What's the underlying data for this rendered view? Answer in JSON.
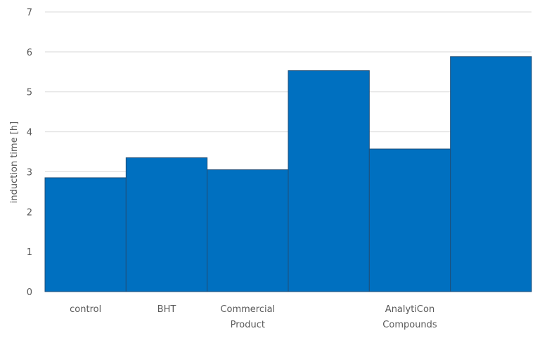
{
  "chart_data": {
    "type": "bar",
    "ylabel": "induction time [h]",
    "xlabel": "",
    "ylim": [
      0,
      7
    ],
    "yticks": [
      "0",
      "1",
      "2",
      "3",
      "4",
      "5",
      "6",
      "7"
    ],
    "grid": true,
    "bar_color": "#0070C0",
    "bar_edge_color": "#1F4E79",
    "grid_color": "#D9D9D9",
    "bar_values": [
      2.85,
      3.35,
      3.05,
      5.53,
      3.57,
      5.88
    ],
    "category_labels": [
      {
        "lines": [
          "control"
        ],
        "bar_span": [
          0,
          0
        ]
      },
      {
        "lines": [
          "BHT"
        ],
        "bar_span": [
          1,
          1
        ]
      },
      {
        "lines": [
          "Commercial",
          "Product"
        ],
        "bar_span": [
          2,
          2
        ]
      },
      {
        "lines": [
          "AnalytiCon",
          "Compounds"
        ],
        "bar_span": [
          3,
          5
        ]
      }
    ]
  }
}
